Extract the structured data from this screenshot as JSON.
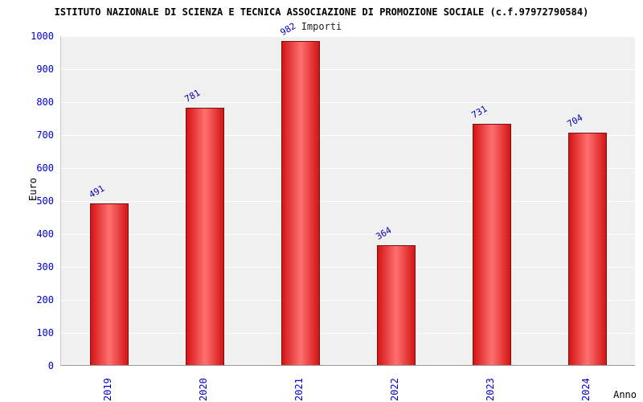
{
  "chart_data": {
    "type": "bar",
    "title": "ISTITUTO NAZIONALE DI SCIENZA E TECNICA ASSOCIAZIONE DI PROMOZIONE SOCIALE (c.f.97972790584)",
    "subtitle": "Importi",
    "categories": [
      "2019",
      "2020",
      "2021",
      "2022",
      "2023",
      "2024"
    ],
    "values": [
      491,
      781,
      982,
      364,
      731,
      704
    ],
    "xlabel": "Anno",
    "ylabel": "Euro",
    "ylim": [
      0,
      1000
    ],
    "ytick_step": 100,
    "grid": "horizontal-white-on-gray",
    "legend": "none",
    "colors": {
      "bar_edge": "#d41414",
      "bar_center": "#ff7070",
      "bar_border": "#7a1010",
      "value_label": "#0000bb",
      "tick_label": "#0000cc",
      "plot_bg": "#f0f0f0",
      "gridline": "#ffffff"
    }
  }
}
